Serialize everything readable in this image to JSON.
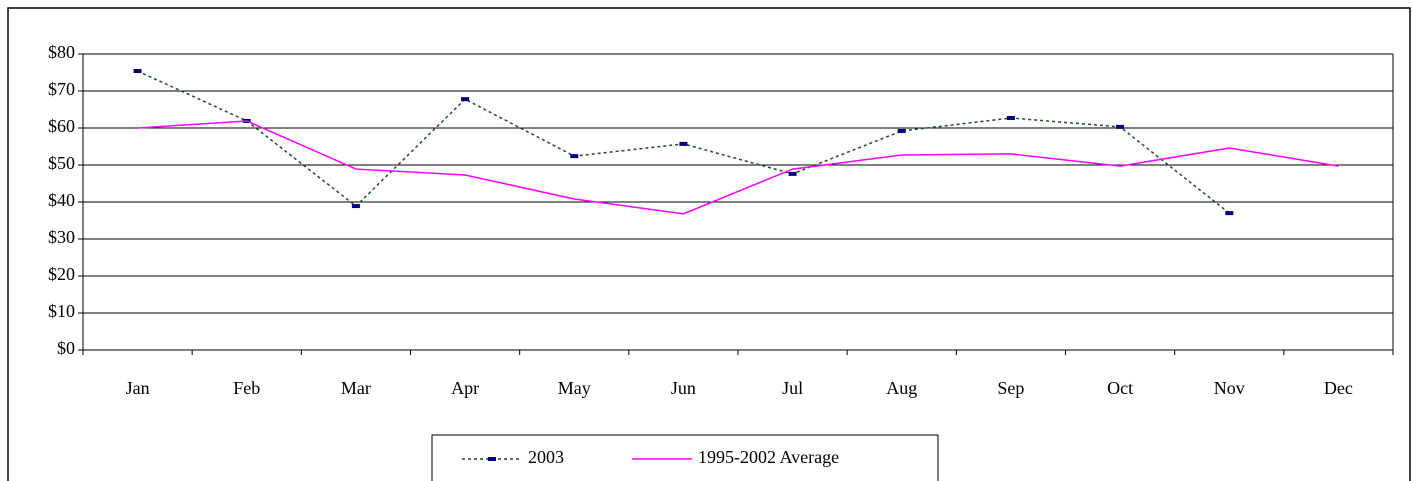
{
  "chart_data": {
    "type": "line",
    "categories": [
      "Jan",
      "Feb",
      "Mar",
      "Apr",
      "May",
      "Jun",
      "Jul",
      "Aug",
      "Sep",
      "Oct",
      "Nov",
      "Dec"
    ],
    "series": [
      {
        "name": "2003",
        "color": "#1f4e1f",
        "marker_color": "#000080",
        "dash": true,
        "values": [
          75.4,
          61.9,
          38.9,
          67.8,
          52.4,
          55.7,
          47.6,
          59.2,
          62.7,
          60.3,
          37.0,
          null
        ]
      },
      {
        "name": "1995-2002 Average",
        "color": "#ff00ff",
        "dash": false,
        "values": [
          60.0,
          61.9,
          48.9,
          47.3,
          40.8,
          36.8,
          48.9,
          52.7,
          53.0,
          49.7,
          54.6,
          49.7
        ]
      }
    ],
    "ylim": [
      0,
      80
    ],
    "yticks": [
      {
        "value": 0,
        "label": "$0"
      },
      {
        "value": 10,
        "label": "$10"
      },
      {
        "value": 20,
        "label": "$20"
      },
      {
        "value": 30,
        "label": "$30"
      },
      {
        "value": 40,
        "label": "$40"
      },
      {
        "value": 50,
        "label": "$50"
      },
      {
        "value": 60,
        "label": "$60"
      },
      {
        "value": 70,
        "label": "$70"
      },
      {
        "value": 80,
        "label": "$80"
      }
    ],
    "grid": true,
    "legend": "bottom"
  }
}
